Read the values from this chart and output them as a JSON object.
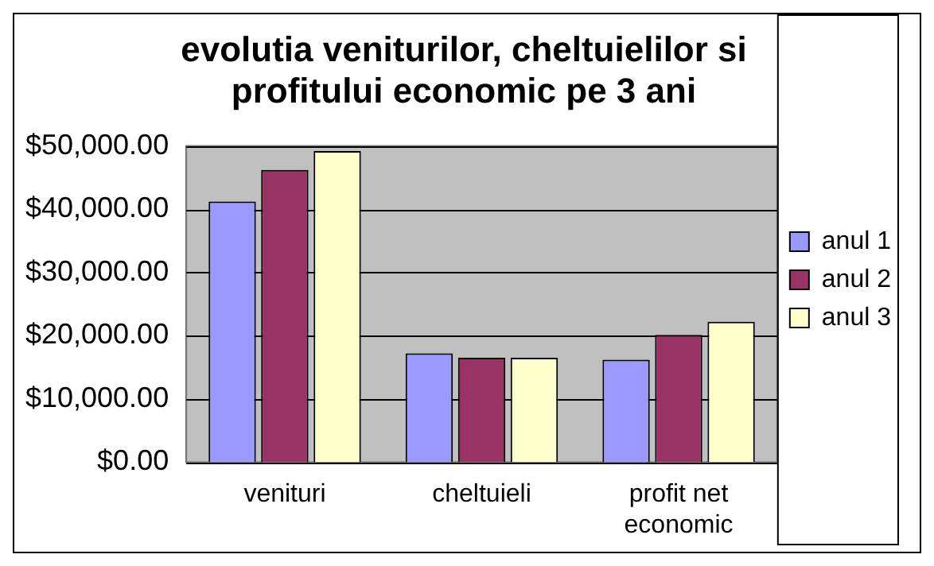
{
  "chart_data": {
    "type": "bar",
    "title": "evolutia veniturilor, cheltuielilor si profitului economic pe 3 ani",
    "categories": [
      "venituri",
      "cheltuieli",
      "profit net economic"
    ],
    "series": [
      {
        "name": "anul 1",
        "color": "#9999ff",
        "values": [
          41200,
          17200,
          16200
        ]
      },
      {
        "name": "anul 2",
        "color": "#993366",
        "values": [
          46200,
          16500,
          20100
        ]
      },
      {
        "name": "anul 3",
        "color": "#ffffcc",
        "values": [
          49200,
          16500,
          22200
        ]
      }
    ],
    "ylim": [
      0,
      50000
    ],
    "yticks": [
      {
        "value": 0,
        "label": "$0.00"
      },
      {
        "value": 10000,
        "label": "$10,000.00"
      },
      {
        "value": 20000,
        "label": "$20,000.00"
      },
      {
        "value": 30000,
        "label": "$30,000.00"
      },
      {
        "value": 40000,
        "label": "$40,000.00"
      },
      {
        "value": 50000,
        "label": "$50,000.00"
      }
    ],
    "grid": "y",
    "legend": "right"
  }
}
